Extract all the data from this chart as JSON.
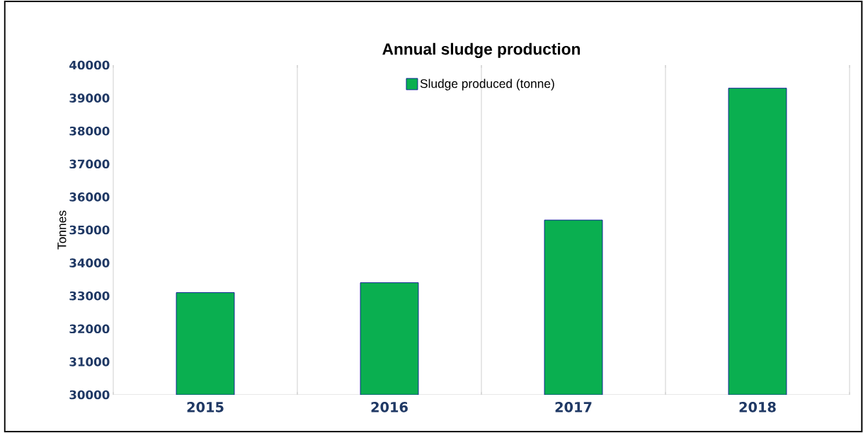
{
  "chart_data": {
    "type": "bar",
    "title": "Annual sludge production",
    "ylabel": "Tonnes",
    "categories": [
      "2015",
      "2016",
      "2017",
      "2018"
    ],
    "series": [
      {
        "name": "Sludge produced (tonne)",
        "color": "#0aaf50",
        "values": [
          33100,
          33400,
          35300,
          39300
        ]
      }
    ],
    "ylim": [
      30000,
      40000
    ],
    "yticks": [
      30000,
      31000,
      32000,
      33000,
      34000,
      35000,
      36000,
      37000,
      38000,
      39000,
      40000
    ],
    "grid": "x",
    "legend": "top"
  }
}
